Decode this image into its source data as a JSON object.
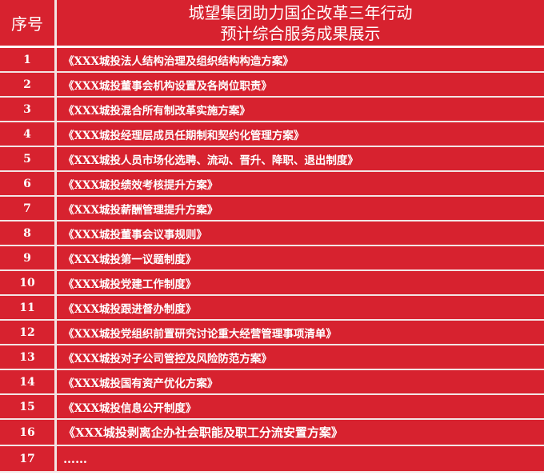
{
  "header": {
    "col_index": "序号",
    "title_line1": "城望集团助力国企改革三年行动",
    "title_line2": "预计综合服务成果展示"
  },
  "rows": [
    {
      "no": "1",
      "text": "《XXX城投法人结构治理及组织结构构造方案》"
    },
    {
      "no": "2",
      "text": "《XXX城投董事会机构设置及各岗位职责》"
    },
    {
      "no": "3",
      "text": "《XXX城投混合所有制改革实施方案》"
    },
    {
      "no": "4",
      "text": "《XXX城投经理层成员任期制和契约化管理方案》"
    },
    {
      "no": "5",
      "text": "《XXX城投人员市场化选聘、流动、晋升、降职、退出制度》"
    },
    {
      "no": "6",
      "text": "《XXX城投绩效考核提升方案》"
    },
    {
      "no": "7",
      "text": "《XXX城投薪酬管理提升方案》"
    },
    {
      "no": "8",
      "text": "《XXX城投董事会议事规则》"
    },
    {
      "no": "9",
      "text": "《XXX城投第一议题制度》"
    },
    {
      "no": "10",
      "text": "《XXX城投党建工作制度》"
    },
    {
      "no": "11",
      "text": "《XXX城投跟进督办制度》"
    },
    {
      "no": "12",
      "text": "《XXX城投党组织前置研究讨论重大经营管理事项清单》"
    },
    {
      "no": "13",
      "text": "《XXX城投对子公司管控及风险防范方案》"
    },
    {
      "no": "14",
      "text": "《XXX城投国有资产优化方案》"
    },
    {
      "no": "15",
      "text": "《XXX城投信息公开制度》"
    },
    {
      "no": "16",
      "text": "《XXX城投剥离企办社会职能及职工分流安置方案》"
    },
    {
      "no": "17",
      "text": "……"
    }
  ],
  "colors": {
    "background": "#d7222f",
    "text": "#ffffff"
  }
}
